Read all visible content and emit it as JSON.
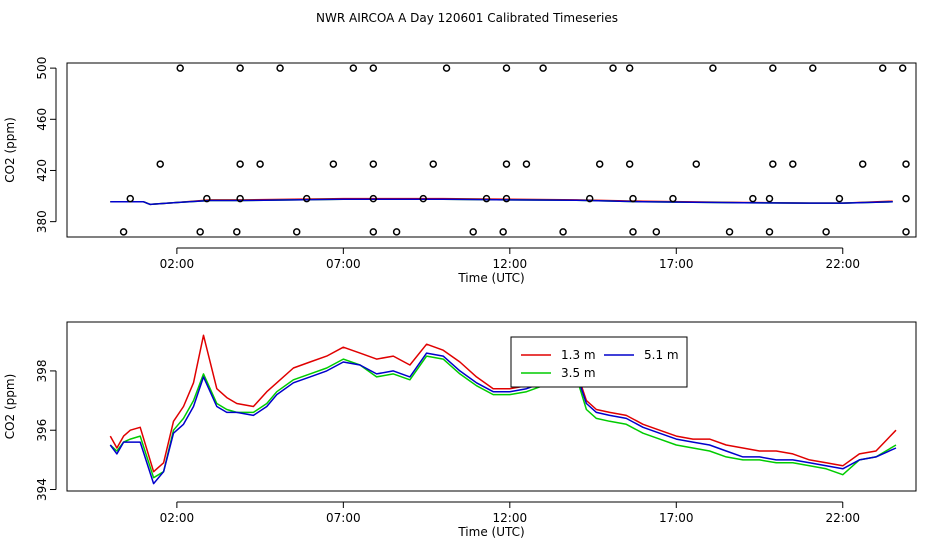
{
  "title": "NWR AIRCOA A  Day 120601  Calibrated Timeseries",
  "colors": {
    "s13": "#e00000",
    "s35": "#00cc00",
    "s51": "#0000cc",
    "axis": "#000000"
  },
  "chart_data": [
    {
      "type": "line",
      "panel": "top",
      "xlabel": "Time (UTC)",
      "ylabel": "CO2 (ppm)",
      "xlim": [
        -1.3,
        24.2
      ],
      "ylim": [
        368,
        504
      ],
      "xticks": [
        2,
        7,
        12,
        17,
        22
      ],
      "xtick_labels": [
        "02:00",
        "07:00",
        "12:00",
        "17:00",
        "22:00"
      ],
      "yticks": [
        380,
        420,
        460,
        500
      ],
      "ytick_labels": [
        "380",
        "420",
        "460",
        "500"
      ],
      "calibration_points": {
        "y500": [
          2.1,
          3.9,
          5.1,
          7.3,
          7.9,
          10.1,
          11.9,
          13.0,
          15.1,
          15.6,
          18.1,
          19.9,
          21.1,
          23.2,
          23.8
        ],
        "y425": [
          1.5,
          3.9,
          4.5,
          6.7,
          7.9,
          9.7,
          11.9,
          12.5,
          14.7,
          15.6,
          17.6,
          19.9,
          20.5,
          22.6,
          23.9
        ],
        "y398": [
          0.6,
          2.9,
          3.9,
          5.9,
          7.9,
          9.4,
          11.3,
          11.9,
          14.4,
          15.7,
          16.9,
          19.3,
          19.8,
          21.9,
          23.9
        ],
        "y372": [
          0.4,
          2.7,
          3.8,
          5.6,
          7.9,
          8.6,
          10.9,
          11.8,
          13.6,
          15.7,
          16.4,
          18.6,
          19.8,
          21.5,
          23.9
        ]
      },
      "series": [
        {
          "name": "1.3 m",
          "color": "#e00000",
          "x": [
            0,
            1.0,
            1.2,
            2.0,
            3.0,
            4.0,
            7.0,
            10.0,
            12.0,
            14.0,
            16.0,
            19.0,
            21.0,
            22.0,
            23.5
          ],
          "y": [
            395.5,
            395.5,
            393.5,
            395.0,
            397.0,
            397.0,
            398.0,
            398.0,
            397.5,
            397.0,
            396.0,
            395.0,
            394.5,
            394.5,
            396.0
          ]
        },
        {
          "name": "3.5 m",
          "color": "#00cc00",
          "x": [
            0,
            1.0,
            1.2,
            2.0,
            3.0,
            4.0,
            7.0,
            10.0,
            12.0,
            14.0,
            16.0,
            19.0,
            21.0,
            22.0,
            23.5
          ],
          "y": [
            395.5,
            395.5,
            393.5,
            395.0,
            396.5,
            396.5,
            397.5,
            397.5,
            397.0,
            396.8,
            395.5,
            394.8,
            394.5,
            394.5,
            395.5
          ]
        },
        {
          "name": "5.1 m",
          "color": "#0000cc",
          "x": [
            0,
            1.0,
            1.2,
            2.0,
            3.0,
            4.0,
            7.0,
            10.0,
            12.0,
            14.0,
            16.0,
            19.0,
            21.0,
            22.0,
            23.5
          ],
          "y": [
            395.5,
            395.5,
            393.5,
            395.0,
            396.5,
            396.5,
            397.5,
            397.5,
            397.0,
            396.8,
            395.5,
            394.8,
            394.5,
            394.5,
            395.5
          ]
        }
      ]
    },
    {
      "type": "line",
      "panel": "bottom",
      "xlabel": "Time (UTC)",
      "ylabel": "CO2 (ppm)",
      "xlim": [
        -1.3,
        24.2
      ],
      "ylim": [
        393.95,
        399.65
      ],
      "xticks": [
        2,
        7,
        12,
        17,
        22
      ],
      "xtick_labels": [
        "02:00",
        "07:00",
        "12:00",
        "17:00",
        "22:00"
      ],
      "yticks": [
        394,
        396,
        398
      ],
      "ytick_labels": [
        "394",
        "396",
        "398"
      ],
      "legend_position": "top-center",
      "series": [
        {
          "name": "1.3 m",
          "color": "#e00000",
          "x": [
            0.0,
            0.2,
            0.4,
            0.6,
            0.9,
            1.3,
            1.6,
            1.9,
            2.2,
            2.5,
            2.8,
            3.2,
            3.5,
            3.8,
            4.3,
            4.7,
            5.0,
            5.5,
            6.0,
            6.5,
            7.0,
            7.5,
            8.0,
            8.5,
            9.0,
            9.5,
            10.0,
            10.5,
            11.0,
            11.5,
            12.0,
            12.5,
            13.0,
            13.5,
            14.0,
            14.3,
            14.6,
            15.0,
            15.5,
            16.0,
            16.5,
            17.0,
            17.5,
            18.0,
            18.5,
            19.0,
            19.5,
            20.0,
            20.5,
            21.0,
            21.5,
            22.0,
            22.5,
            23.0,
            23.6
          ],
          "y": [
            395.8,
            395.4,
            395.8,
            396.0,
            396.1,
            394.6,
            394.9,
            396.3,
            396.8,
            397.6,
            399.2,
            397.4,
            397.1,
            396.9,
            396.8,
            397.3,
            397.6,
            398.1,
            398.3,
            398.5,
            398.8,
            398.6,
            398.4,
            398.5,
            398.2,
            398.9,
            398.7,
            398.3,
            397.8,
            397.4,
            397.4,
            397.5,
            397.7,
            398.1,
            398.0,
            397.0,
            396.7,
            396.6,
            396.5,
            396.2,
            396.0,
            395.8,
            395.7,
            395.7,
            395.5,
            395.4,
            395.3,
            395.3,
            395.2,
            395.0,
            394.9,
            394.8,
            395.2,
            395.3,
            396.0
          ]
        },
        {
          "name": "3.5 m",
          "color": "#00cc00",
          "x": [
            0.0,
            0.2,
            0.4,
            0.6,
            0.9,
            1.3,
            1.6,
            1.9,
            2.2,
            2.5,
            2.8,
            3.2,
            3.5,
            3.8,
            4.3,
            4.7,
            5.0,
            5.5,
            6.0,
            6.5,
            7.0,
            7.5,
            8.0,
            8.5,
            9.0,
            9.5,
            10.0,
            10.5,
            11.0,
            11.5,
            12.0,
            12.5,
            13.0,
            13.5,
            14.0,
            14.3,
            14.6,
            15.0,
            15.5,
            16.0,
            16.5,
            17.0,
            17.5,
            18.0,
            18.5,
            19.0,
            19.5,
            20.0,
            20.5,
            21.0,
            21.5,
            22.0,
            22.5,
            23.0,
            23.6
          ],
          "y": [
            395.5,
            395.3,
            395.6,
            395.7,
            395.8,
            394.4,
            394.6,
            396.0,
            396.4,
            397.0,
            397.9,
            396.9,
            396.7,
            396.6,
            396.6,
            396.9,
            397.3,
            397.7,
            397.9,
            398.1,
            398.4,
            398.2,
            397.8,
            397.9,
            397.7,
            398.5,
            398.4,
            397.9,
            397.5,
            397.2,
            397.2,
            397.3,
            397.5,
            397.9,
            397.8,
            396.7,
            396.4,
            396.3,
            396.2,
            395.9,
            395.7,
            395.5,
            395.4,
            395.3,
            395.1,
            395.0,
            395.0,
            394.9,
            394.9,
            394.8,
            394.7,
            394.5,
            395.0,
            395.1,
            395.5
          ]
        },
        {
          "name": "5.1 m",
          "color": "#0000cc",
          "x": [
            0.0,
            0.2,
            0.4,
            0.6,
            0.9,
            1.3,
            1.6,
            1.9,
            2.2,
            2.5,
            2.8,
            3.2,
            3.5,
            3.8,
            4.3,
            4.7,
            5.0,
            5.5,
            6.0,
            6.5,
            7.0,
            7.5,
            8.0,
            8.5,
            9.0,
            9.5,
            10.0,
            10.5,
            11.0,
            11.5,
            12.0,
            12.5,
            13.0,
            13.5,
            14.0,
            14.3,
            14.6,
            15.0,
            15.5,
            16.0,
            16.5,
            17.0,
            17.5,
            18.0,
            18.5,
            19.0,
            19.5,
            20.0,
            20.5,
            21.0,
            21.5,
            22.0,
            22.5,
            23.0,
            23.6
          ],
          "y": [
            395.5,
            395.2,
            395.6,
            395.6,
            395.6,
            394.2,
            394.6,
            395.9,
            396.2,
            396.8,
            397.8,
            396.8,
            396.6,
            396.6,
            396.5,
            396.8,
            397.2,
            397.6,
            397.8,
            398.0,
            398.3,
            398.2,
            397.9,
            398.0,
            397.8,
            398.6,
            398.5,
            398.0,
            397.6,
            397.3,
            397.3,
            397.4,
            397.6,
            397.9,
            397.9,
            396.9,
            396.6,
            396.5,
            396.4,
            396.1,
            395.9,
            395.7,
            395.6,
            395.5,
            395.3,
            395.1,
            395.1,
            395.0,
            395.0,
            394.9,
            394.8,
            394.7,
            395.0,
            395.1,
            395.4
          ]
        }
      ]
    }
  ]
}
